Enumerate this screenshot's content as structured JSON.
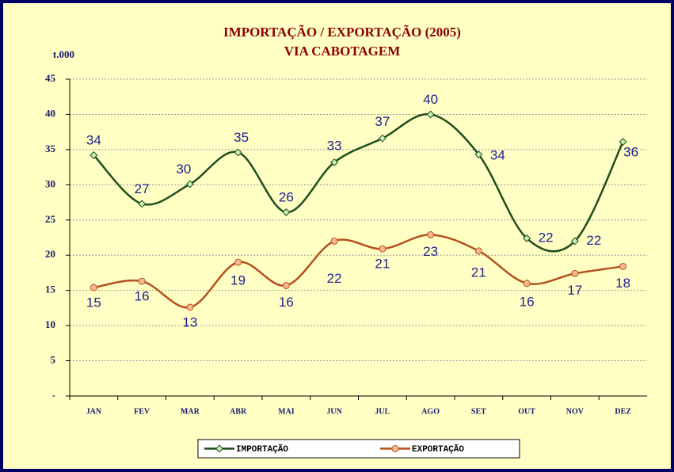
{
  "chart_data": {
    "type": "line",
    "title": "IMPORTAÇÃO / EXPORTAÇÃO (2005)",
    "subtitle": "VIA CABOTAGEM",
    "y_label": "t.000",
    "categories": [
      "JAN",
      "FEV",
      "MAR",
      "ABR",
      "MAI",
      "JUN",
      "JUL",
      "AGO",
      "SET",
      "OUT",
      "NOV",
      "DEZ"
    ],
    "series": [
      {
        "name": "IMPORTAÇÃO",
        "color": "#1e4d1e",
        "marker_color": "#c8f0b4",
        "values": [
          34.2,
          27.3,
          30.1,
          34.6,
          26.1,
          33.2,
          36.6,
          40.0,
          34.3,
          22.4,
          22.0,
          36.1
        ],
        "value_labels": [
          "34",
          "27",
          "30",
          "35",
          "26",
          "33",
          "37",
          "40",
          "34",
          "22",
          "22",
          "36"
        ]
      },
      {
        "name": "EXPORTAÇÃO",
        "color": "#b5501e",
        "marker_color": "#f7b98c",
        "values": [
          15.4,
          16.3,
          12.6,
          19.0,
          15.7,
          22.0,
          20.9,
          22.9,
          20.6,
          16.0,
          17.4,
          18.4
        ],
        "value_labels": [
          "15",
          "16",
          "13",
          "19",
          "16",
          "22",
          "21",
          "23",
          "21",
          "16",
          "17",
          "18"
        ]
      }
    ],
    "ylim": [
      0,
      45
    ],
    "yticks": [
      {
        "value": 0,
        "label": "-"
      },
      5,
      10,
      15,
      20,
      25,
      30,
      35,
      40,
      45
    ],
    "grid": true,
    "legend": "bottom"
  }
}
